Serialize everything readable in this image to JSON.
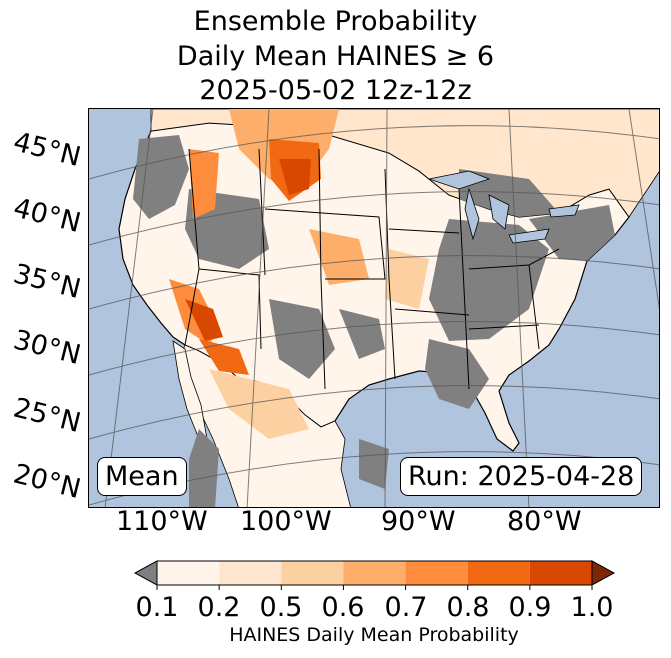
{
  "title": {
    "line1": "Ensemble Probability",
    "line2": "Daily Mean HAINES ≥ 6",
    "line3": "2025-05-02 12z-12z"
  },
  "map": {
    "latitude_labels": [
      "45°N",
      "40°N",
      "35°N",
      "30°N",
      "25°N",
      "20°N"
    ],
    "longitude_labels": [
      "110°W",
      "100°W",
      "90°W",
      "80°W"
    ],
    "stat_label": "Mean",
    "run_label": "Run: 2025-04-28",
    "colors": {
      "ocean": "#b0c4de",
      "no_data_land": "#808080",
      "graticule": "#555555",
      "borders": "#000000"
    }
  },
  "colorbar": {
    "ticks": [
      "0.1",
      "0.2",
      "0.5",
      "0.6",
      "0.7",
      "0.8",
      "0.9",
      "1.0"
    ],
    "colors": [
      "#fff5eb",
      "#fee6ce",
      "#fdd0a2",
      "#fdae6b",
      "#fd8d3c",
      "#f16913",
      "#d94801",
      "#a63603"
    ],
    "under_color": "#808080",
    "over_color": "#7f2704",
    "label": "HAINES Daily Mean Probability"
  }
}
